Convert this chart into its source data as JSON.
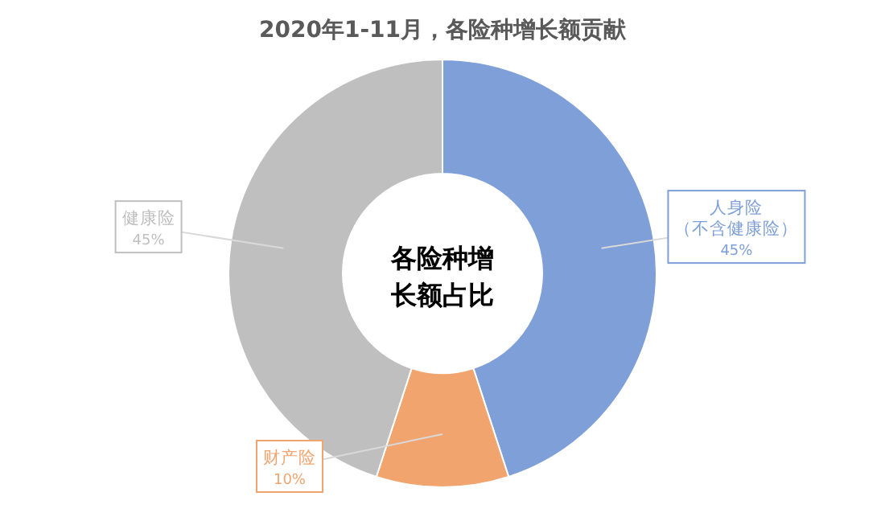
{
  "chart_data": {
    "type": "donut",
    "title": "2020年1-11月，各险种增长额贡献",
    "categories": [
      "人身险（不含健康险）",
      "财产险",
      "健康险"
    ],
    "values": [
      45,
      10,
      45
    ],
    "colors": [
      "#7f9fd9",
      "#f2a46e",
      "#bfbfbf"
    ],
    "value_labels": [
      "45%",
      "10%",
      "45%"
    ],
    "annotations": [
      "各险种增长额占比"
    ]
  }
}
